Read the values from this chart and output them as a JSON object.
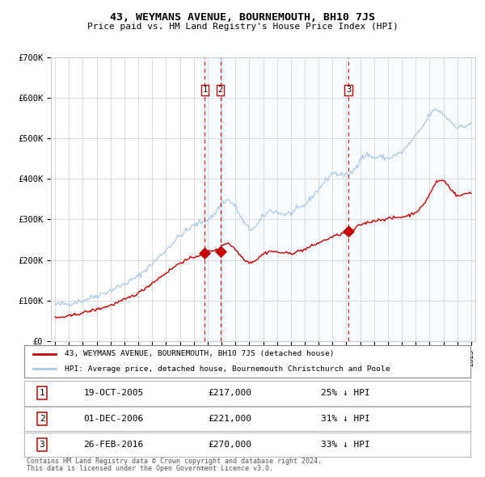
{
  "title": "43, WEYMANS AVENUE, BOURNEMOUTH, BH10 7JS",
  "subtitle": "Price paid vs. HM Land Registry's House Price Index (HPI)",
  "legend_red": "43, WEYMANS AVENUE, BOURNEMOUTH, BH10 7JS (detached house)",
  "legend_blue": "HPI: Average price, detached house, Bournemouth Christchurch and Poole",
  "footer1": "Contains HM Land Registry data © Crown copyright and database right 2024.",
  "footer2": "This data is licensed under the Open Government Licence v3.0.",
  "sales": [
    {
      "label": "1",
      "date": "19-OCT-2005",
      "price": 217000,
      "pct": "25%",
      "dir": "↓"
    },
    {
      "label": "2",
      "date": "01-DEC-2006",
      "price": 221000,
      "pct": "31%",
      "dir": "↓"
    },
    {
      "label": "3",
      "date": "26-FEB-2016",
      "price": 270000,
      "pct": "33%",
      "dir": "↓"
    }
  ],
  "sale_dates_num": [
    2005.8,
    2006.92,
    2016.15
  ],
  "sale_prices": [
    217000,
    221000,
    270000
  ],
  "ylim": [
    0,
    700000
  ],
  "yticks": [
    0,
    100000,
    200000,
    300000,
    400000,
    500000,
    600000,
    700000
  ],
  "ytick_labels": [
    "£0",
    "£100K",
    "£200K",
    "£300K",
    "£400K",
    "£500K",
    "£600K",
    "£700K"
  ],
  "xstart_year": 1995,
  "xend_year": 2025,
  "red_color": "#cc0000",
  "blue_color": "#a8c8e8",
  "shade_color": "#ddeeff",
  "grid_color": "#cccccc",
  "bg_color": "#ffffff"
}
